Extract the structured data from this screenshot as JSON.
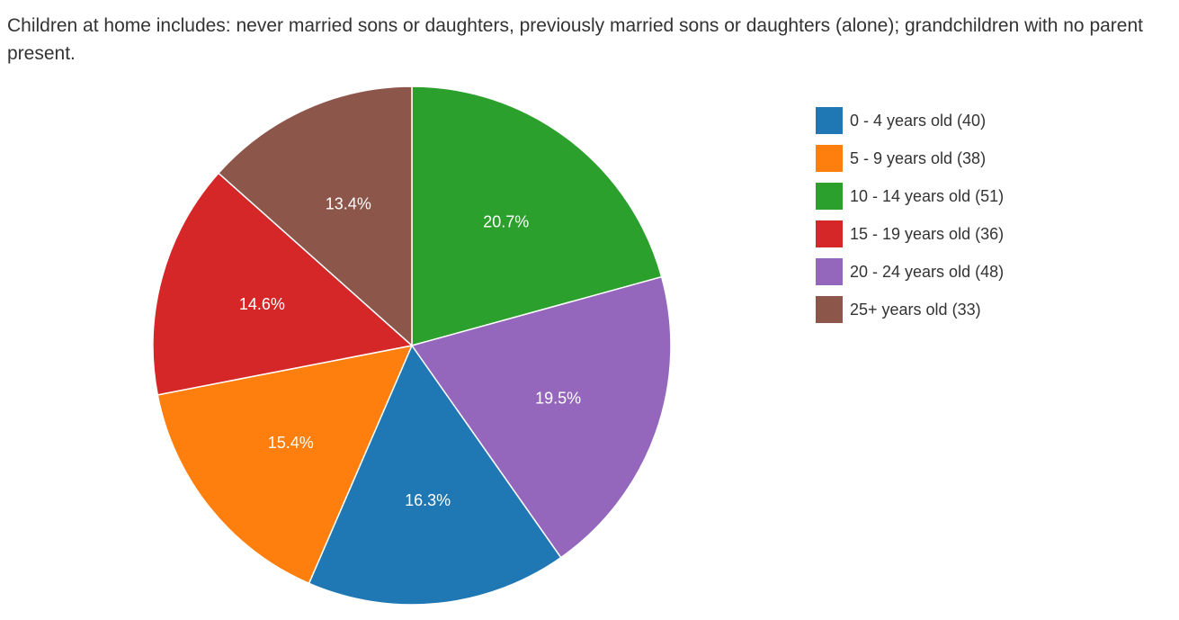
{
  "caption": "Children at home includes: never married sons or daughters, previously married sons or daughters (alone); grandchildren with no parent present.",
  "chart_data": {
    "type": "pie",
    "title": "",
    "start_category_order": [
      "10 - 14 years old",
      "20 - 24 years old",
      "0 - 4 years old",
      "5 - 9 years old",
      "15 - 19 years old",
      "25+ years old"
    ],
    "slices": [
      {
        "legend": "0 - 4 years old (40)",
        "category": "0 - 4 years old",
        "value": 40,
        "percent_label": "16.3%",
        "color": "#1f77b4"
      },
      {
        "legend": "5 - 9 years old (38)",
        "category": "5 - 9 years old",
        "value": 38,
        "percent_label": "15.4%",
        "color": "#ff7f0e"
      },
      {
        "legend": "10 - 14 years old (51)",
        "category": "10 - 14 years old",
        "value": 51,
        "percent_label": "20.7%",
        "color": "#2ca02c"
      },
      {
        "legend": "15 - 19 years old (36)",
        "category": "15 - 19 years old",
        "value": 36,
        "percent_label": "14.6%",
        "color": "#d62728"
      },
      {
        "legend": "20 - 24 years old (48)",
        "category": "20 - 24 years old",
        "value": 48,
        "percent_label": "19.5%",
        "color": "#9467bd"
      },
      {
        "legend": "25+ years old (33)",
        "category": "25+ years old",
        "value": 33,
        "percent_label": "13.4%",
        "color": "#8c564b"
      }
    ],
    "legend_placement": "right"
  }
}
